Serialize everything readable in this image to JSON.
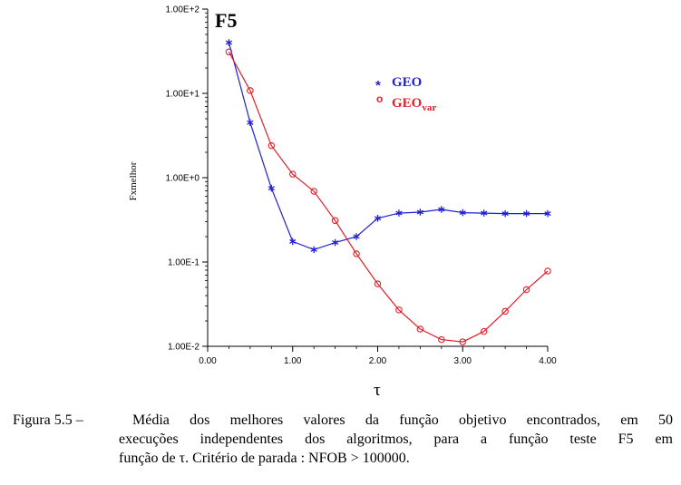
{
  "chart_data": {
    "type": "line",
    "title": "F5",
    "xlabel": "τ",
    "ylabel": "Fxmelhor",
    "xlim": [
      0.0,
      4.0
    ],
    "ylim": [
      0.01,
      100
    ],
    "yscale": "log",
    "grid": false,
    "legend_position": "top-right",
    "x_ticks": [
      {
        "value": 0.0,
        "label": "0.00"
      },
      {
        "value": 1.0,
        "label": "1.00"
      },
      {
        "value": 2.0,
        "label": "2.00"
      },
      {
        "value": 3.0,
        "label": "3.00"
      },
      {
        "value": 4.0,
        "label": "4.00"
      }
    ],
    "y_ticks": [
      {
        "value": 100,
        "label": "1.00E+2"
      },
      {
        "value": 10,
        "label": "1.00E+1"
      },
      {
        "value": 1,
        "label": "1.00E+0"
      },
      {
        "value": 0.1,
        "label": "1.00E-1"
      },
      {
        "value": 0.01,
        "label": "1.00E-2"
      }
    ],
    "x": [
      0.25,
      0.5,
      0.75,
      1.0,
      1.25,
      1.5,
      1.75,
      2.0,
      2.25,
      2.5,
      2.75,
      3.0,
      3.25,
      3.5,
      3.75,
      4.0
    ],
    "series": [
      {
        "name": "GEO",
        "color": "#1f1fd6",
        "marker": "asterisk",
        "values": [
          40,
          4.5,
          0.75,
          0.175,
          0.14,
          0.17,
          0.2,
          0.33,
          0.38,
          0.39,
          0.42,
          0.385,
          0.38,
          0.375,
          0.375,
          0.375
        ]
      },
      {
        "name": "GEO",
        "name_subscript": "var",
        "color": "#e0202a",
        "marker": "circle",
        "values": [
          31,
          10.8,
          2.4,
          1.1,
          0.69,
          0.31,
          0.125,
          0.055,
          0.027,
          0.016,
          0.012,
          0.0113,
          0.015,
          0.026,
          0.047,
          0.078
        ]
      }
    ]
  },
  "caption": {
    "line1_prefix": "Figura 5.5 –",
    "line1_text": "Média dos melhores valores da função objetivo encontrados, em 50",
    "line2": "execuções independentes dos algoritmos, para a função teste F5 em",
    "line3": "função de τ. Critério de parada : NFOB > 100000."
  }
}
